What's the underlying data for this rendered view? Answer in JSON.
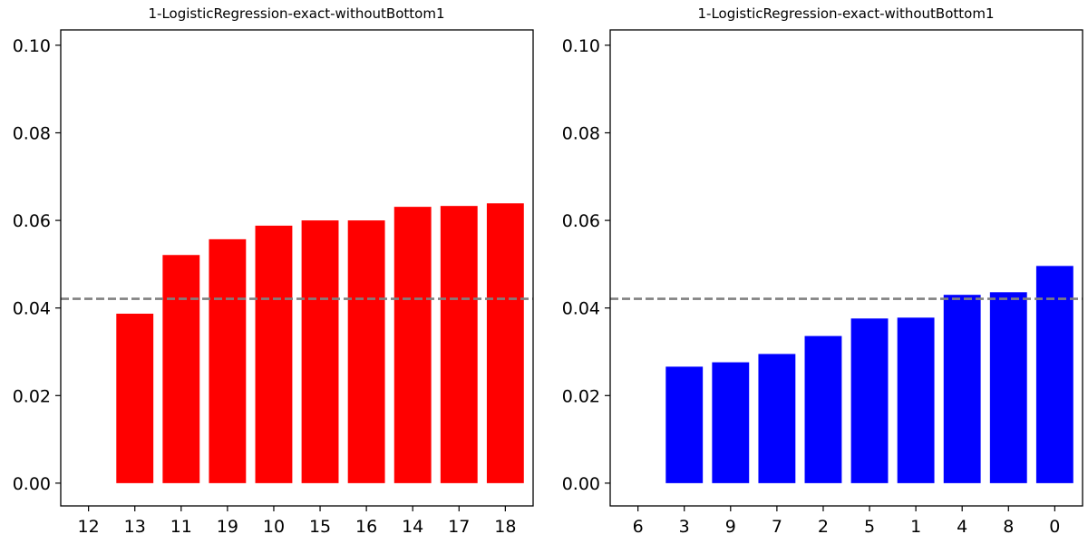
{
  "chart_data": [
    {
      "type": "bar",
      "title": "1-LogisticRegression-exact-withoutBottom1",
      "xlabel": "",
      "ylabel": "",
      "categories": [
        "12",
        "13",
        "11",
        "19",
        "10",
        "15",
        "16",
        "14",
        "17",
        "18"
      ],
      "values": [
        0.0,
        0.0387,
        0.0521,
        0.0557,
        0.0588,
        0.06,
        0.06,
        0.0631,
        0.0633,
        0.0639
      ],
      "bar_color": "#ff0000",
      "reference_line": {
        "y": 0.0421,
        "color": "#808080",
        "style": "dashed"
      },
      "ylim": [
        -0.0052,
        0.1035
      ],
      "yticks": [
        "0.00",
        "0.02",
        "0.04",
        "0.06",
        "0.08",
        "0.10"
      ],
      "grid": false,
      "legend": "none"
    },
    {
      "type": "bar",
      "title": "1-LogisticRegression-exact-withoutBottom1",
      "xlabel": "",
      "ylabel": "",
      "categories": [
        "6",
        "3",
        "9",
        "7",
        "2",
        "5",
        "1",
        "4",
        "8",
        "0"
      ],
      "values": [
        0.0,
        0.0266,
        0.0276,
        0.0295,
        0.0336,
        0.0376,
        0.0378,
        0.043,
        0.0436,
        0.0496
      ],
      "bar_color": "#0000ff",
      "reference_line": {
        "y": 0.0421,
        "color": "#808080",
        "style": "dashed"
      },
      "ylim": [
        -0.0052,
        0.1035
      ],
      "yticks": [
        "0.00",
        "0.02",
        "0.04",
        "0.06",
        "0.08",
        "0.10"
      ],
      "grid": false,
      "legend": "none"
    }
  ]
}
